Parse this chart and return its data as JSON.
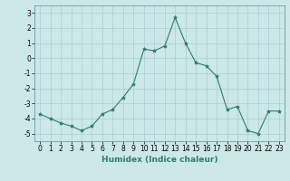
{
  "x": [
    0,
    1,
    2,
    3,
    4,
    5,
    6,
    7,
    8,
    9,
    10,
    11,
    12,
    13,
    14,
    15,
    16,
    17,
    18,
    19,
    20,
    21,
    22,
    23
  ],
  "y": [
    -3.7,
    -4.0,
    -4.3,
    -4.5,
    -4.8,
    -4.5,
    -3.7,
    -3.4,
    -2.6,
    -1.7,
    0.6,
    0.5,
    0.8,
    2.7,
    1.0,
    -0.3,
    -0.5,
    -1.2,
    -3.4,
    -3.2,
    -4.8,
    -5.0,
    -3.5,
    -3.5
  ],
  "line_color": "#2e7d6e",
  "marker": "*",
  "marker_size": 3,
  "bg_color": "#cce8e8",
  "grid_color": "#aacfcf",
  "xlabel": "Humidex (Indice chaleur)",
  "xlabel_fontsize": 6.5,
  "tick_fontsize": 5.5,
  "ylim": [
    -5.5,
    3.5
  ],
  "xlim": [
    -0.5,
    23.5
  ],
  "yticks": [
    -5,
    -4,
    -3,
    -2,
    -1,
    0,
    1,
    2,
    3
  ],
  "xticks": [
    0,
    1,
    2,
    3,
    4,
    5,
    6,
    7,
    8,
    9,
    10,
    11,
    12,
    13,
    14,
    15,
    16,
    17,
    18,
    19,
    20,
    21,
    22,
    23
  ]
}
